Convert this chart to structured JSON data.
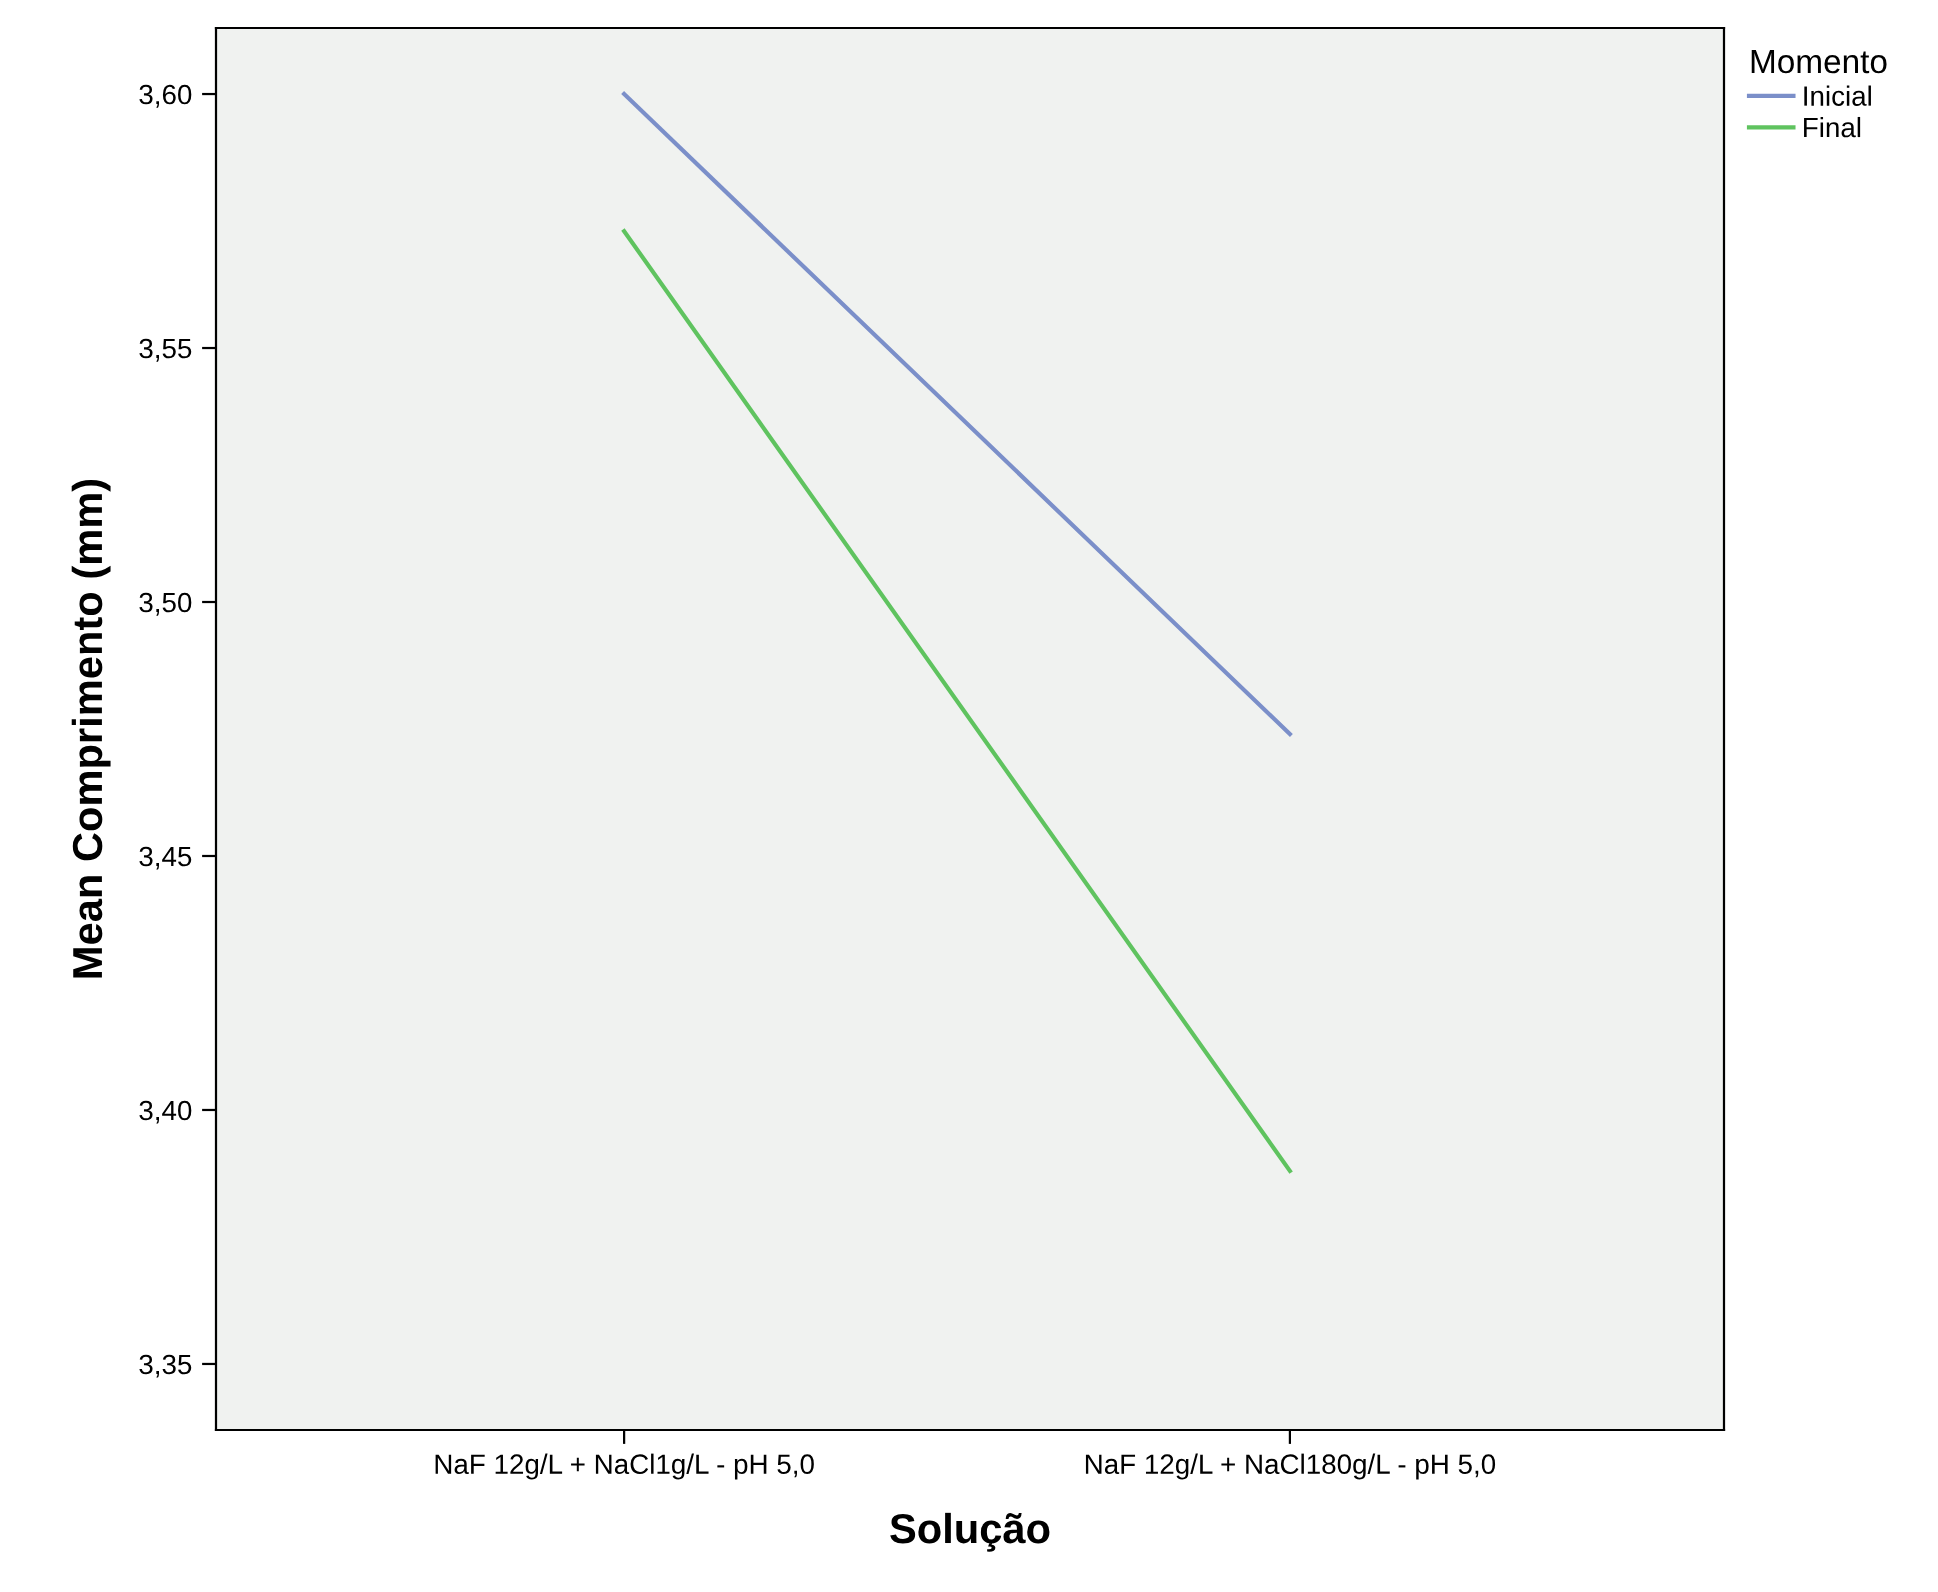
{
  "chart_data": {
    "type": "line",
    "xlabel": "Solução",
    "ylabel": "Mean Comprimento (mm)",
    "legend_title": "Momento",
    "categories": [
      "NaF 12g/L + NaCl1g/L - pH 5,0",
      "NaF 12g/L + NaCl180g/L - pH 5,0"
    ],
    "series": [
      {
        "name": "Inicial",
        "color": "#7b8fc9",
        "values": [
          3.6,
          3.474
        ]
      },
      {
        "name": "Final",
        "color": "#5fc35f",
        "values": [
          3.573,
          3.388
        ]
      }
    ],
    "ylim": [
      3.337,
      3.613
    ],
    "yticks": [
      {
        "value": 3.35,
        "label": "3,35"
      },
      {
        "value": 3.4,
        "label": "3,40"
      },
      {
        "value": 3.45,
        "label": "3,45"
      },
      {
        "value": 3.5,
        "label": "3,50"
      },
      {
        "value": 3.55,
        "label": "3,55"
      },
      {
        "value": 3.6,
        "label": "3,60"
      }
    ],
    "grid": false,
    "legend": "top right",
    "marker": "none",
    "line_style": "solid"
  }
}
